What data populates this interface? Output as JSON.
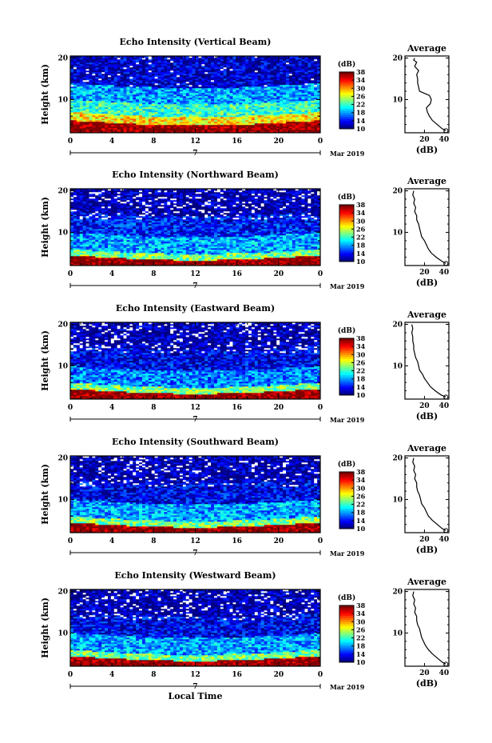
{
  "chart_data": [
    {
      "type": "heatmap",
      "title": "Echo Intensity (Vertical Beam)",
      "ylabel": "Height (km)",
      "x_ticks": [
        "0",
        "4",
        "8",
        "12",
        "16",
        "20",
        "0"
      ],
      "xlim": [
        0,
        24
      ],
      "y_ticks": [
        "10",
        "20"
      ],
      "ylim": [
        2,
        20.5
      ],
      "date_marker": "7",
      "month_label": "Mar 2019",
      "colorbar": {
        "unit": "(dB)",
        "ticks": [
          "10",
          "14",
          "18",
          "22",
          "26",
          "30",
          "34",
          "38"
        ],
        "range": [
          10,
          38
        ]
      },
      "layers": [
        {
          "height_km": [
            2,
            5
          ],
          "intensity_db": 38
        },
        {
          "height_km": [
            5,
            7
          ],
          "intensity_db": 28
        },
        {
          "height_km": [
            7,
            10
          ],
          "intensity_db": 22
        },
        {
          "height_km": [
            10,
            14
          ],
          "intensity_db": 18
        },
        {
          "height_km": [
            14,
            20
          ],
          "intensity_db": 12
        }
      ],
      "average_profile": {
        "title": "Average",
        "xlabel": "(dB)",
        "x_ticks": [
          "20",
          "40"
        ],
        "xlim": [
          0,
          45
        ],
        "y_ticks": [
          "10",
          "20"
        ],
        "ylim": [
          2,
          20.5
        ],
        "height_km": [
          2.5,
          3,
          4,
          5,
          6,
          7,
          8,
          8.5,
          9,
          10,
          11,
          11.5,
          12,
          13,
          14,
          15,
          16,
          17,
          18,
          19,
          19.5,
          20
        ],
        "db": [
          42,
          38,
          33,
          28,
          25,
          23,
          22,
          24,
          26,
          27,
          25,
          20,
          15,
          14,
          13,
          13,
          12,
          14,
          10,
          12,
          9,
          10
        ]
      }
    },
    {
      "type": "heatmap",
      "title": "Echo Intensity (Northward Beam)",
      "ylabel": "Height (km)",
      "x_ticks": [
        "0",
        "4",
        "8",
        "12",
        "16",
        "20",
        "0"
      ],
      "xlim": [
        0,
        24
      ],
      "y_ticks": [
        "10",
        "20"
      ],
      "ylim": [
        2,
        20.5
      ],
      "date_marker": "7",
      "month_label": "Mar 2019",
      "colorbar": {
        "unit": "(dB)",
        "ticks": [
          "10",
          "14",
          "18",
          "22",
          "26",
          "30",
          "34",
          "38"
        ],
        "range": [
          10,
          38
        ]
      },
      "layers": [
        {
          "height_km": [
            2,
            4.5
          ],
          "intensity_db": 38
        },
        {
          "height_km": [
            4.5,
            6
          ],
          "intensity_db": 24
        },
        {
          "height_km": [
            6,
            10
          ],
          "intensity_db": 18
        },
        {
          "height_km": [
            10,
            15
          ],
          "intensity_db": 14
        },
        {
          "height_km": [
            15,
            20
          ],
          "intensity_db": 11
        }
      ],
      "average_profile": {
        "title": "Average",
        "xlabel": "(dB)",
        "x_ticks": [
          "20",
          "40"
        ],
        "xlim": [
          0,
          45
        ],
        "y_ticks": [
          "10",
          "20"
        ],
        "ylim": [
          2,
          20.5
        ],
        "height_km": [
          2.5,
          3,
          4,
          5,
          6,
          7,
          8,
          9,
          10,
          11,
          12,
          13,
          14,
          15,
          16,
          17,
          18,
          19,
          20
        ],
        "db": [
          42,
          38,
          32,
          27,
          24,
          22,
          20,
          17,
          16,
          15,
          14,
          12,
          12,
          10,
          11,
          9,
          10,
          8,
          9
        ]
      }
    },
    {
      "type": "heatmap",
      "title": "Echo Intensity (Eastward Beam)",
      "ylabel": "Height (km)",
      "x_ticks": [
        "0",
        "4",
        "8",
        "12",
        "16",
        "20",
        "0"
      ],
      "xlim": [
        0,
        24
      ],
      "y_ticks": [
        "10",
        "20"
      ],
      "ylim": [
        2,
        20.5
      ],
      "date_marker": "7",
      "month_label": "Mar 2019",
      "colorbar": {
        "unit": "(dB)",
        "ticks": [
          "10",
          "14",
          "18",
          "22",
          "26",
          "30",
          "34",
          "38"
        ],
        "range": [
          10,
          38
        ]
      },
      "layers": [
        {
          "height_km": [
            2,
            4.5
          ],
          "intensity_db": 38
        },
        {
          "height_km": [
            4.5,
            6
          ],
          "intensity_db": 24
        },
        {
          "height_km": [
            6,
            10
          ],
          "intensity_db": 17
        },
        {
          "height_km": [
            10,
            15
          ],
          "intensity_db": 13
        },
        {
          "height_km": [
            15,
            20
          ],
          "intensity_db": 11
        }
      ],
      "average_profile": {
        "title": "Average",
        "xlabel": "(dB)",
        "x_ticks": [
          "20",
          "40"
        ],
        "xlim": [
          0,
          45
        ],
        "y_ticks": [
          "10",
          "20"
        ],
        "ylim": [
          2,
          20.5
        ],
        "height_km": [
          2.5,
          3,
          4,
          5,
          6,
          7,
          8,
          9,
          10,
          11,
          12,
          13,
          14,
          15,
          16,
          17,
          18,
          19,
          20
        ],
        "db": [
          42,
          37,
          31,
          26,
          23,
          20,
          18,
          15,
          14,
          13,
          11,
          10,
          9,
          9,
          8,
          8,
          7,
          8,
          7
        ]
      }
    },
    {
      "type": "heatmap",
      "title": "Echo Intensity (Southward Beam)",
      "ylabel": "Height (km)",
      "x_ticks": [
        "0",
        "4",
        "8",
        "12",
        "16",
        "20",
        "0"
      ],
      "xlim": [
        0,
        24
      ],
      "y_ticks": [
        "10",
        "20"
      ],
      "ylim": [
        2,
        20.5
      ],
      "date_marker": "7",
      "month_label": "Mar 2019",
      "colorbar": {
        "unit": "(dB)",
        "ticks": [
          "10",
          "14",
          "18",
          "22",
          "26",
          "30",
          "34",
          "38"
        ],
        "range": [
          10,
          38
        ]
      },
      "layers": [
        {
          "height_km": [
            2,
            4.5
          ],
          "intensity_db": 38
        },
        {
          "height_km": [
            4.5,
            6
          ],
          "intensity_db": 24
        },
        {
          "height_km": [
            6,
            10
          ],
          "intensity_db": 18
        },
        {
          "height_km": [
            10,
            15
          ],
          "intensity_db": 13
        },
        {
          "height_km": [
            15,
            20
          ],
          "intensity_db": 11
        }
      ],
      "average_profile": {
        "title": "Average",
        "xlabel": "(dB)",
        "x_ticks": [
          "20",
          "40"
        ],
        "xlim": [
          0,
          45
        ],
        "y_ticks": [
          "10",
          "20"
        ],
        "ylim": [
          2,
          20.5
        ],
        "height_km": [
          2.5,
          3,
          4,
          5,
          6,
          7,
          8,
          9,
          10,
          11,
          12,
          13,
          14,
          15,
          16,
          17,
          18,
          19,
          20
        ],
        "db": [
          42,
          38,
          33,
          28,
          24,
          22,
          20,
          17,
          16,
          15,
          13,
          12,
          12,
          10,
          11,
          9,
          10,
          8,
          9
        ]
      }
    },
    {
      "type": "heatmap",
      "title": "Echo Intensity (Westward Beam)",
      "ylabel": "Height (km)",
      "xlabel": "Local Time",
      "x_ticks": [
        "0",
        "4",
        "8",
        "12",
        "16",
        "20",
        "0"
      ],
      "xlim": [
        0,
        24
      ],
      "y_ticks": [
        "10",
        "20"
      ],
      "ylim": [
        2,
        20.5
      ],
      "date_marker": "7",
      "month_label": "Mar 2019",
      "colorbar": {
        "unit": "(dB)",
        "ticks": [
          "10",
          "14",
          "18",
          "22",
          "26",
          "30",
          "34",
          "38"
        ],
        "range": [
          10,
          38
        ]
      },
      "layers": [
        {
          "height_km": [
            2,
            4.5
          ],
          "intensity_db": 38
        },
        {
          "height_km": [
            4.5,
            6
          ],
          "intensity_db": 24
        },
        {
          "height_km": [
            6,
            10
          ],
          "intensity_db": 18
        },
        {
          "height_km": [
            10,
            15
          ],
          "intensity_db": 13
        },
        {
          "height_km": [
            15,
            20
          ],
          "intensity_db": 11
        }
      ],
      "average_profile": {
        "title": "Average",
        "xlabel": "(dB)",
        "x_ticks": [
          "20",
          "40"
        ],
        "xlim": [
          0,
          45
        ],
        "y_ticks": [
          "10",
          "20"
        ],
        "ylim": [
          2,
          20.5
        ],
        "height_km": [
          2.5,
          3,
          4,
          5,
          6,
          7,
          8,
          9,
          10,
          11,
          12,
          13,
          14,
          15,
          16,
          17,
          18,
          19,
          20
        ],
        "db": [
          42,
          38,
          33,
          28,
          24,
          21,
          19,
          17,
          16,
          15,
          13,
          12,
          12,
          10,
          11,
          9,
          10,
          8,
          9
        ]
      }
    }
  ]
}
